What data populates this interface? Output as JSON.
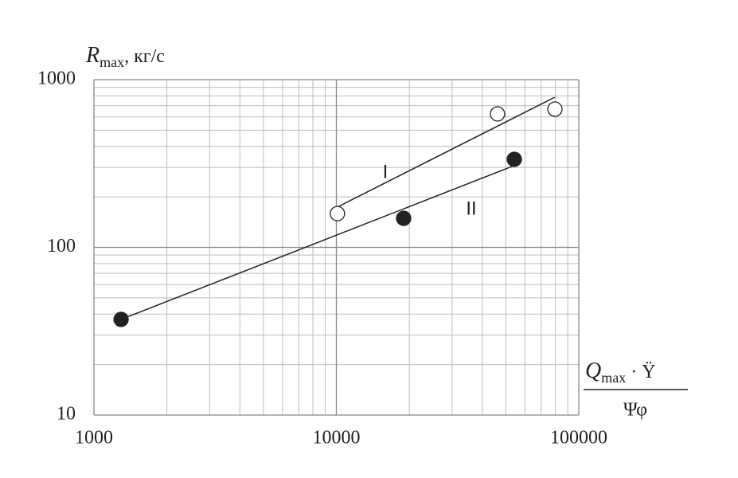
{
  "chart_data": {
    "type": "scatter",
    "y_label": {
      "main": "R",
      "sub": "max",
      "rest": ", кг/с"
    },
    "x_label": {
      "main": "Q",
      "sub": "max",
      "rest": " · Ϋ",
      "denominator": "Ψφ"
    },
    "log_x": true,
    "log_y": true,
    "grid": true,
    "xlim": [
      1000,
      100000
    ],
    "ylim": [
      10,
      1000
    ],
    "xticks": [
      1000,
      10000,
      100000
    ],
    "yticks": [
      10,
      100,
      1000
    ],
    "minor_xticks": [
      2000,
      3000,
      4000,
      5000,
      6000,
      7000,
      8000,
      9000,
      20000,
      30000,
      40000,
      50000,
      60000,
      70000,
      80000,
      90000
    ],
    "minor_yticks": [
      20,
      30,
      40,
      50,
      60,
      70,
      80,
      90,
      200,
      300,
      400,
      500,
      600,
      700,
      800,
      900
    ],
    "series": [
      {
        "name": "I",
        "color": "#222",
        "marker": "open",
        "x": [
          10100,
          46200,
          79700
        ],
        "values": [
          159,
          625,
          667
        ],
        "fit_x": [
          10100,
          79500
        ],
        "fit_values": [
          174,
          785
        ]
      },
      {
        "name": "II",
        "color": "#222",
        "marker": "filled",
        "x": [
          1294,
          18950,
          54200
        ],
        "values": [
          37.2,
          149,
          335
        ],
        "fit_x": [
          1294,
          55000
        ],
        "fit_values": [
          37.2,
          310
        ]
      }
    ]
  }
}
